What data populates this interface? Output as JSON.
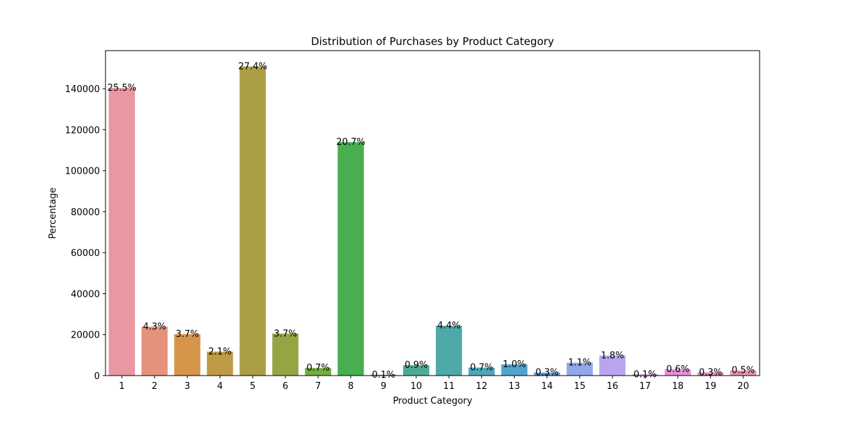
{
  "chart_data": {
    "type": "bar",
    "title": "Distribution of Purchases by Product Category",
    "xlabel": "Product Category",
    "ylabel": "Percentage",
    "categories": [
      "1",
      "2",
      "3",
      "4",
      "5",
      "6",
      "7",
      "8",
      "9",
      "10",
      "11",
      "12",
      "13",
      "14",
      "15",
      "16",
      "17",
      "18",
      "19",
      "20"
    ],
    "values": [
      140400,
      23900,
      20200,
      11700,
      150900,
      20500,
      3700,
      113900,
      400,
      5100,
      24300,
      3900,
      5500,
      1500,
      6300,
      9800,
      600,
      3100,
      1600,
      2500
    ],
    "labels": [
      "25.5%",
      "4.3%",
      "3.7%",
      "2.1%",
      "27.4%",
      "3.7%",
      "0.7%",
      "20.7%",
      "0.1%",
      "0.9%",
      "4.4%",
      "0.7%",
      "1.0%",
      "0.3%",
      "1.1%",
      "1.8%",
      "0.1%",
      "0.6%",
      "0.3%",
      "0.5%"
    ],
    "colors": [
      "#ea96a3",
      "#e5927d",
      "#d6944b",
      "#bf9b47",
      "#aa9e46",
      "#96a543",
      "#74ad3f",
      "#48ae4f",
      "#4bac7f",
      "#4daa96",
      "#4ea9a8",
      "#4fa7b9",
      "#51a4cc",
      "#5fa1e2",
      "#91a8eb",
      "#b8a5ee",
      "#d999ec",
      "#e78fd9",
      "#e892c0",
      "#e994b0"
    ],
    "yticks": [
      0,
      20000,
      40000,
      60000,
      80000,
      100000,
      120000,
      140000
    ],
    "ylim": [
      0,
      158600
    ],
    "grid": false
  }
}
